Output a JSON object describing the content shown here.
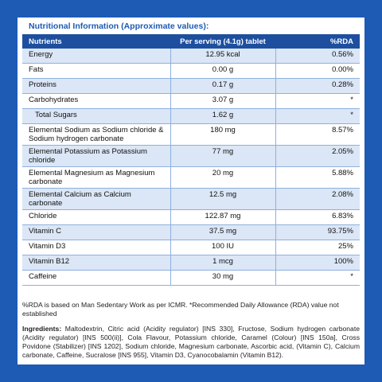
{
  "title": "Nutritional Information (Approximate values):",
  "table": {
    "headers": [
      "Nutrients",
      "Per serving (4.1g) tablet",
      "%RDA"
    ],
    "rows": [
      [
        "Energy",
        "12.95 kcal",
        "0.56%"
      ],
      [
        "Fats",
        "0.00 g",
        "0.00%"
      ],
      [
        "Proteins",
        "0.17 g",
        "0.28%"
      ],
      [
        "Carbohydrates",
        "3.07 g",
        "*"
      ],
      [
        "Total Sugars",
        "1.62 g",
        "*"
      ],
      [
        "Elemental Sodium as Sodium chloride & Sodium hydrogen carbonate",
        "180 mg",
        "8.57%"
      ],
      [
        "Elemental Potassium as Potassium chloride",
        "77 mg",
        "2.05%"
      ],
      [
        "Elemental Magnesium as Magnesium carbonate",
        "20 mg",
        "5.88%"
      ],
      [
        "Elemental Calcium as Calcium carbonate",
        "12.5 mg",
        "2.08%"
      ],
      [
        "Chloride",
        "122.87 mg",
        "6.83%"
      ],
      [
        "Vitamin C",
        "37.5 mg",
        "93.75%"
      ],
      [
        "Vitamin D3",
        "100 IU",
        "25%"
      ],
      [
        "Vitamin B12",
        "1 mcg",
        "100%"
      ],
      [
        "Caffeine",
        "30 mg",
        "*"
      ]
    ]
  },
  "footnote": "%RDA is based on Man Sedentary Work as per ICMR. *Recommended Daily Allowance (RDA) value not established",
  "ingredients": {
    "label": "Ingredients:",
    "text": "Maltodextrin, Citric acid (Acidity regulator) [INS 330], Fructose, Sodium hydrogen carbonate (Acidity regulator) [INS 500(ii)], Cola Flavour, Potassium chloride, Caramel (Colour) [INS 150a], Cross Povidone (Stabilizer) [INS 1202], Sodium chloride, Magnesium carbonate, Ascorbic acid, (Vitamin C), Calcium carbonate, Caffeine, Sucralose [INS 955], Vitamin D3, Cyanocobalamin (Vitamin B12)."
  }
}
